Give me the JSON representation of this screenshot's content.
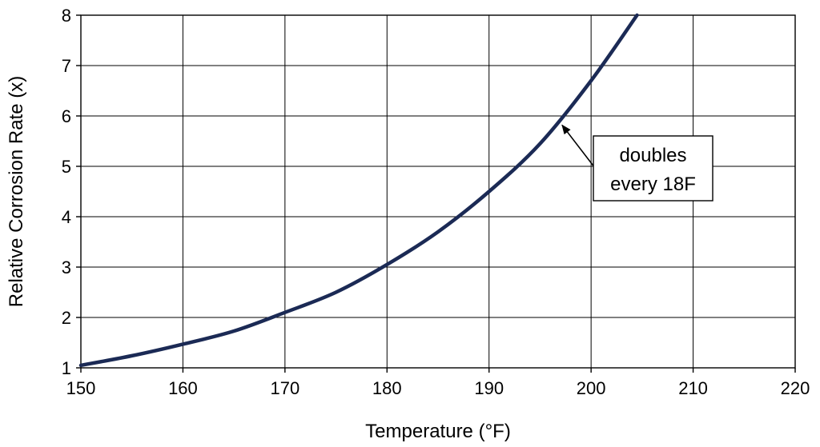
{
  "chart_data": {
    "type": "line",
    "title": "",
    "xlabel": "Temperature (°F)",
    "ylabel": "Relative Corrosion Rate (x)",
    "xlim": [
      150,
      220
    ],
    "ylim": [
      1,
      8
    ],
    "xticks": [
      150,
      160,
      170,
      180,
      190,
      200,
      210,
      220
    ],
    "yticks": [
      1,
      2,
      3,
      4,
      5,
      6,
      7,
      8
    ],
    "xtick_labels": [
      "150",
      "160",
      "170",
      "180",
      "190",
      "200",
      "210",
      "220"
    ],
    "ytick_labels": [
      "1",
      "2",
      "3",
      "4",
      "5",
      "6",
      "7",
      "8"
    ],
    "grid": true,
    "series": [
      {
        "name": "Relative corrosion rate",
        "color": "#1b2a55",
        "x": [
          150,
          155,
          160,
          165,
          170,
          175,
          180,
          185,
          190,
          195,
          200,
          204.5
        ],
        "y": [
          1.05,
          1.24,
          1.47,
          1.73,
          2.1,
          2.5,
          3.05,
          3.7,
          4.5,
          5.45,
          6.7,
          8.0
        ]
      }
    ],
    "annotation": {
      "lines": [
        "doubles",
        "every 18F"
      ],
      "arrow_target": {
        "x": 197,
        "y": 5.85
      }
    }
  }
}
